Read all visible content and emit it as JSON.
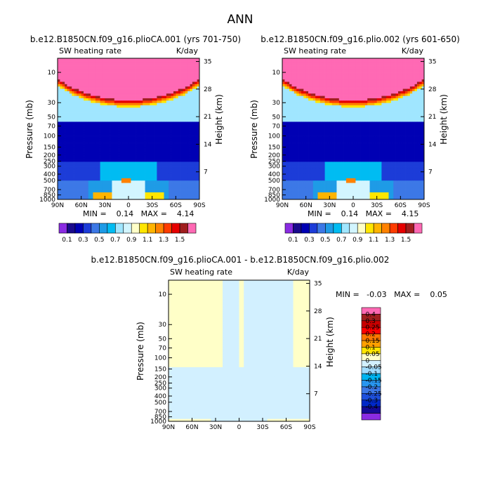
{
  "figure_title": "ANN",
  "chart_data": [
    {
      "type": "contour",
      "title": "b.e12.B1850CN.f09_g16.plioCA.001 (yrs 701-750)",
      "subtitle_left": "SW heating rate",
      "subtitle_right": "K/day",
      "ylabel": "Pressure (mb)",
      "ylabel_right": "Height (km)",
      "x_ticks": [
        "90N",
        "60N",
        "30N",
        "0",
        "30S",
        "60S",
        "90S"
      ],
      "y_ticks": [
        "10",
        "30",
        "50",
        "70",
        "100",
        "150",
        "200",
        "250",
        "300",
        "400",
        "500",
        "700",
        "850",
        "1000"
      ],
      "height_ticks": [
        "35",
        "28",
        "21",
        "14",
        "7"
      ],
      "min": 0.14,
      "max": 4.14,
      "stats_text": "MIN =    0.14   MAX =    4.14",
      "colorbar_labels": [
        "0.1",
        "0.3",
        "0.5",
        "0.7",
        "0.9",
        "1.1",
        "1.3",
        "1.5"
      ]
    },
    {
      "type": "contour",
      "title": "b.e12.B1850CN.f09_g16.plio.002 (yrs 601-650)",
      "subtitle_left": "SW heating rate",
      "subtitle_right": "K/day",
      "ylabel": "Pressure (mb)",
      "ylabel_right": "Height (km)",
      "x_ticks": [
        "90N",
        "60N",
        "30N",
        "0",
        "30S",
        "60S",
        "90S"
      ],
      "y_ticks": [
        "10",
        "30",
        "50",
        "70",
        "100",
        "150",
        "200",
        "250",
        "300",
        "400",
        "500",
        "700",
        "850",
        "1000"
      ],
      "height_ticks": [
        "35",
        "28",
        "21",
        "14",
        "7"
      ],
      "min": 0.14,
      "max": 4.15,
      "stats_text": "MIN =    0.14   MAX =    4.15",
      "colorbar_labels": [
        "0.1",
        "0.3",
        "0.5",
        "0.7",
        "0.9",
        "1.1",
        "1.3",
        "1.5"
      ]
    },
    {
      "type": "contour",
      "title": "b.e12.B1850CN.f09_g16.plioCA.001 - b.e12.B1850CN.f09_g16.plio.002",
      "subtitle_left": "SW heating rate",
      "subtitle_right": "K/day",
      "ylabel": "Pressure (mb)",
      "ylabel_right": "Height (km)",
      "x_ticks": [
        "90N",
        "60N",
        "30N",
        "0",
        "30S",
        "60S",
        "90S"
      ],
      "y_ticks": [
        "10",
        "30",
        "50",
        "70",
        "100",
        "150",
        "200",
        "250",
        "300",
        "400",
        "500",
        "700",
        "850",
        "1000"
      ],
      "height_ticks": [
        "35",
        "28",
        "21",
        "14",
        "7"
      ],
      "min": -0.03,
      "max": 0.05,
      "stats_text": "MIN =   -0.03   MAX =    0.05",
      "colorbar_labels": [
        "0.4",
        "0.3",
        "0.25",
        "0.2",
        "0.15",
        "0.1",
        "0.05",
        "0",
        "-0.05",
        "-0.1",
        "-0.15",
        "-0.2",
        "-0.25",
        "-0.3",
        "-0.4"
      ]
    }
  ],
  "palettes": {
    "abs": [
      "#8a2be2",
      "#1a0a8c",
      "#0000b4",
      "#1c3cd8",
      "#3c78e6",
      "#1e9be6",
      "#00bcf2",
      "#a0e6ff",
      "#d2f5ff",
      "#ffffc8",
      "#ffe600",
      "#ffb400",
      "#ff8200",
      "#ff3c00",
      "#e60000",
      "#a01e1e",
      "#ff69b4"
    ],
    "diff": [
      "#8a2be2",
      "#140a96",
      "#0028c8",
      "#1e50dc",
      "#3c78e6",
      "#2896f0",
      "#00b4f0",
      "#a0dcff",
      "#d2f0ff",
      "#ffffc8",
      "#ffe600",
      "#ffa000",
      "#ff7800",
      "#ff0000",
      "#c80000",
      "#a01e1e",
      "#ff69b4"
    ]
  }
}
